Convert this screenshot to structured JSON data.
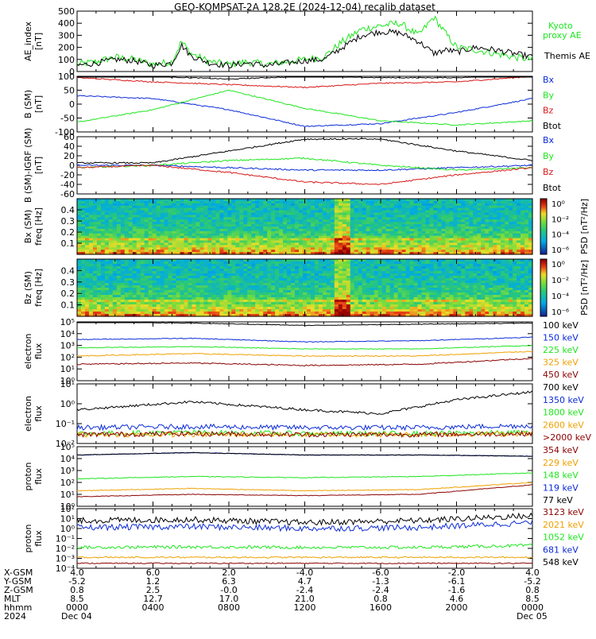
{
  "title": "GEO-KOMPSAT-2A 128.2E (2024-12-04) recalib dataset",
  "colors": {
    "black": "#000000",
    "blue": "#0a2ad8",
    "green": "#1ee61e",
    "red": "#d81818",
    "orange": "#f0a000",
    "darkred": "#8b0000"
  },
  "chart_data": [
    {
      "id": "ae",
      "type": "line",
      "ylabel": "AE_index [nT]",
      "ylim": [
        0,
        500
      ],
      "yticks": [
        "500",
        "400",
        "300",
        "200",
        "100",
        "0"
      ],
      "series": [
        {
          "name": "Kyoto proxy AE",
          "color": "#1ee61e",
          "x_hours": [
            0,
            1,
            2,
            3,
            4,
            5,
            5.5,
            6,
            7,
            8,
            9,
            10,
            11,
            12,
            13,
            14,
            15,
            16,
            17,
            18,
            18.8,
            19.5,
            20,
            21,
            22,
            23,
            24
          ],
          "values": [
            60,
            80,
            120,
            100,
            60,
            80,
            250,
            150,
            80,
            60,
            80,
            60,
            80,
            100,
            120,
            250,
            350,
            380,
            400,
            300,
            450,
            300,
            200,
            180,
            150,
            120,
            100
          ]
        },
        {
          "name": "Themis AE",
          "color": "#000000",
          "x_hours": [
            0,
            1,
            2,
            3,
            4,
            5,
            5.5,
            6,
            7,
            8,
            9,
            10,
            11,
            12,
            13,
            14,
            15,
            16,
            17,
            18,
            18.8,
            19.5,
            20,
            21,
            22,
            23,
            24
          ],
          "values": [
            50,
            70,
            100,
            90,
            50,
            70,
            220,
            130,
            70,
            50,
            70,
            50,
            70,
            90,
            100,
            200,
            300,
            330,
            320,
            250,
            150,
            180,
            160,
            200,
            180,
            150,
            120
          ]
        }
      ]
    },
    {
      "id": "b_sm",
      "type": "line",
      "ylabel": "B (SM) [nT]",
      "ylim": [
        -100,
        100
      ],
      "yticks": [
        "100",
        "50",
        "0",
        "-50",
        "-100"
      ],
      "series": [
        {
          "name": "Bx",
          "color": "#0a2ad8",
          "x_hours": [
            0,
            4,
            8,
            12,
            16,
            20,
            24
          ],
          "values": [
            30,
            20,
            -20,
            -80,
            -70,
            -30,
            20
          ]
        },
        {
          "name": "By",
          "color": "#1ee61e",
          "x_hours": [
            0,
            4,
            8,
            12,
            16,
            20,
            24
          ],
          "values": [
            -65,
            -20,
            50,
            -15,
            -60,
            -75,
            -60
          ]
        },
        {
          "name": "Bz",
          "color": "#d81818",
          "x_hours": [
            0,
            4,
            8,
            12,
            16,
            20,
            24
          ],
          "values": [
            95,
            80,
            70,
            60,
            75,
            80,
            100
          ]
        },
        {
          "name": "Btot",
          "color": "#000000",
          "x_hours": [
            0,
            4,
            8,
            12,
            16,
            20,
            24
          ],
          "values": [
            110,
            100,
            90,
            100,
            95,
            95,
            105
          ]
        }
      ]
    },
    {
      "id": "b_sm_igrf",
      "type": "line",
      "ylabel": "B (SM)-IGRF (SM) [nT]",
      "ylim": [
        -60,
        60
      ],
      "yticks": [
        "60",
        "40",
        "20",
        "0",
        "-20",
        "-40",
        "-60"
      ],
      "series": [
        {
          "name": "Bx",
          "color": "#0a2ad8",
          "x_hours": [
            0,
            4,
            8,
            12,
            16,
            20,
            24
          ],
          "values": [
            0,
            0,
            -5,
            -10,
            -10,
            -5,
            0
          ]
        },
        {
          "name": "By",
          "color": "#1ee61e",
          "x_hours": [
            0,
            4,
            8,
            12,
            16,
            20,
            24
          ],
          "values": [
            -5,
            0,
            10,
            15,
            0,
            -10,
            -5
          ]
        },
        {
          "name": "Bz",
          "color": "#d81818",
          "x_hours": [
            0,
            4,
            8,
            12,
            16,
            20,
            24
          ],
          "values": [
            -5,
            0,
            -15,
            -35,
            -40,
            -20,
            -5
          ]
        },
        {
          "name": "Btot",
          "color": "#000000",
          "x_hours": [
            0,
            4,
            8,
            12,
            16,
            20,
            24
          ],
          "values": [
            5,
            5,
            30,
            55,
            55,
            30,
            10
          ]
        }
      ]
    },
    {
      "id": "bx_spec",
      "type": "heatmap",
      "ylabel": "Bx (SM) freq [Hz]",
      "yticks": [
        "0.4",
        "0.3",
        "0.2",
        "0.1"
      ],
      "colorbar_label": "PSD [nT²/Hz]",
      "colorbar_ticks": [
        "10⁰",
        "10⁻²",
        "10⁻⁴",
        "10⁻⁶"
      ]
    },
    {
      "id": "bz_spec",
      "type": "heatmap",
      "ylabel": "Bz (SM) freq [Hz]",
      "yticks": [
        "0.4",
        "0.3",
        "0.2",
        "0.1"
      ],
      "colorbar_label": "PSD [nT²/Hz]",
      "colorbar_ticks": [
        "10⁰",
        "10⁻²",
        "10⁻⁴",
        "10⁻⁶"
      ]
    },
    {
      "id": "electron_low",
      "type": "line",
      "ylabel": "electron flux",
      "log": true,
      "yticks": [
        "10⁵",
        "10⁴",
        "10³",
        "10²",
        "10¹",
        "10⁰"
      ],
      "series": [
        {
          "name": "100 keV",
          "color": "#000000",
          "x_hours": [
            0,
            6,
            12,
            18,
            24
          ],
          "values": [
            5,
            4.9,
            4.7,
            4.8,
            4.9
          ]
        },
        {
          "name": "150 keV",
          "color": "#0a2ad8",
          "x_hours": [
            0,
            6,
            12,
            18,
            24
          ],
          "values": [
            3.5,
            3.6,
            3.3,
            3.4,
            3.7
          ]
        },
        {
          "name": "225 keV",
          "color": "#1ee61e",
          "x_hours": [
            0,
            6,
            12,
            18,
            24
          ],
          "values": [
            2.8,
            2.9,
            2.7,
            2.7,
            3
          ]
        },
        {
          "name": "325 keV",
          "color": "#f0a000",
          "x_hours": [
            0,
            6,
            12,
            18,
            24
          ],
          "values": [
            2.1,
            2.3,
            2.1,
            2.1,
            2.5
          ]
        },
        {
          "name": "450 keV",
          "color": "#8b0000",
          "x_hours": [
            0,
            6,
            12,
            18,
            24
          ],
          "values": [
            1.4,
            1.5,
            1.3,
            1.4,
            1.9
          ]
        }
      ]
    },
    {
      "id": "electron_high",
      "type": "line",
      "ylabel": "electron flux",
      "log": true,
      "yticks": [
        "10¹",
        "10⁰",
        "10⁻¹",
        "10⁻²"
      ],
      "series": [
        {
          "name": "700 keV",
          "color": "#000000",
          "x_hours": [
            0,
            6,
            12,
            16,
            20,
            24
          ],
          "values": [
            -0.3,
            0.1,
            -0.3,
            -0.5,
            0.2,
            0.6
          ]
        },
        {
          "name": "1350 keV",
          "color": "#0a2ad8",
          "x_hours": [
            0,
            6,
            12,
            18,
            24
          ],
          "values": [
            -1.2,
            -1.15,
            -1.2,
            -1.2,
            -1.1
          ]
        },
        {
          "name": "1800 keV",
          "color": "#1ee61e",
          "x_hours": [
            0,
            6,
            12,
            18,
            24
          ],
          "values": [
            -1.5,
            -1.45,
            -1.5,
            -1.5,
            -1.45
          ]
        },
        {
          "name": "2600 keV",
          "color": "#f0a000",
          "x_hours": [
            0,
            6,
            12,
            18,
            24
          ],
          "values": [
            -1.55,
            -1.55,
            -1.55,
            -1.55,
            -1.5
          ]
        },
        {
          "name": ">2000 keV",
          "color": "#8b0000",
          "x_hours": [
            0,
            6,
            12,
            18,
            24
          ],
          "values": [
            -1.55,
            -1.5,
            -1.55,
            -1.55,
            -1.5
          ]
        }
      ]
    },
    {
      "id": "proton_low",
      "type": "line",
      "ylabel": "proton flux",
      "log": true,
      "yticks": [
        "10⁵",
        "10⁴",
        "10³",
        "10²",
        "10¹",
        "10⁰"
      ],
      "series": [
        {
          "name": "354 keV",
          "color": "#8b0000",
          "x_hours": [
            0,
            6,
            12,
            18,
            24
          ],
          "values": [
            0.8,
            1,
            0.9,
            1,
            1.8
          ]
        },
        {
          "name": "229 keV",
          "color": "#f0a000",
          "x_hours": [
            0,
            6,
            12,
            18,
            24
          ],
          "values": [
            1.3,
            1.5,
            1.3,
            1.4,
            2
          ]
        },
        {
          "name": "148 keV",
          "color": "#1ee61e",
          "x_hours": [
            0,
            6,
            12,
            18,
            24
          ],
          "values": [
            2.3,
            2.5,
            2.4,
            2.5,
            2.8
          ]
        },
        {
          "name": "119 keV",
          "color": "#0a2ad8",
          "x_hours": [
            0,
            6,
            12,
            18,
            24
          ],
          "values": [
            4.3,
            4.5,
            4.3,
            4.3,
            4.2
          ]
        },
        {
          "name": "77 keV",
          "color": "#000000",
          "x_hours": [
            0,
            6,
            12,
            18,
            24
          ],
          "values": [
            4.3,
            4.5,
            4.3,
            4.3,
            4.2
          ]
        }
      ]
    },
    {
      "id": "proton_high",
      "type": "line",
      "ylabel": "proton flux",
      "log": true,
      "yticks": [
        "10²",
        "10¹",
        "10⁰",
        "10⁻¹",
        "10⁻²",
        "10⁻³",
        "10⁻⁴"
      ],
      "series": [
        {
          "name": "3123 keV",
          "color": "#8b0000",
          "x_hours": [
            0,
            6,
            12,
            18,
            24
          ],
          "values": [
            -3.5,
            -3.5,
            -3.5,
            -3.5,
            -3.5
          ]
        },
        {
          "name": "2021 keV",
          "color": "#f0a000",
          "x_hours": [
            0,
            6,
            12,
            18,
            24
          ],
          "values": [
            -2.9,
            -2.9,
            -2.9,
            -2.9,
            -2.9
          ]
        },
        {
          "name": "1052 keV",
          "color": "#1ee61e",
          "x_hours": [
            0,
            6,
            12,
            18,
            24
          ],
          "values": [
            -1.9,
            -1.85,
            -1.9,
            -1.9,
            -1.7
          ]
        },
        {
          "name": "681 keV",
          "color": "#0a2ad8",
          "x_hours": [
            0,
            6,
            12,
            18,
            24
          ],
          "values": [
            0.1,
            0.2,
            0,
            0.1,
            0.6
          ]
        },
        {
          "name": "548 keV",
          "color": "#000000",
          "x_hours": [
            0,
            6,
            12,
            18,
            24
          ],
          "values": [
            0.8,
            0.9,
            0.6,
            0.8,
            1.3
          ]
        }
      ]
    }
  ],
  "footer": {
    "row_labels": [
      "X-GSM",
      "Y-GSM",
      "Z-GSM",
      "MLT",
      "hhmm",
      "2024"
    ],
    "columns": [
      [
        "4.0",
        "-5.2",
        "0.8",
        "8.5",
        "0000",
        "Dec 04"
      ],
      [
        "6.0",
        "1.2",
        "2.5",
        "12.7",
        "0400",
        ""
      ],
      [
        "2.0",
        "6.3",
        "-0.0",
        "17.0",
        "0800",
        ""
      ],
      [
        "-4.0",
        "4.7",
        "-2.4",
        "21.0",
        "1200",
        ""
      ],
      [
        "-6.0",
        "-1.3",
        "-2.4",
        "0.8",
        "1600",
        ""
      ],
      [
        "-2.0",
        "-6.1",
        "-1.6",
        "4.6",
        "2000",
        ""
      ],
      [
        "4.0",
        "-5.2",
        "0.8",
        "8.5",
        "0000",
        "Dec 05"
      ]
    ]
  }
}
